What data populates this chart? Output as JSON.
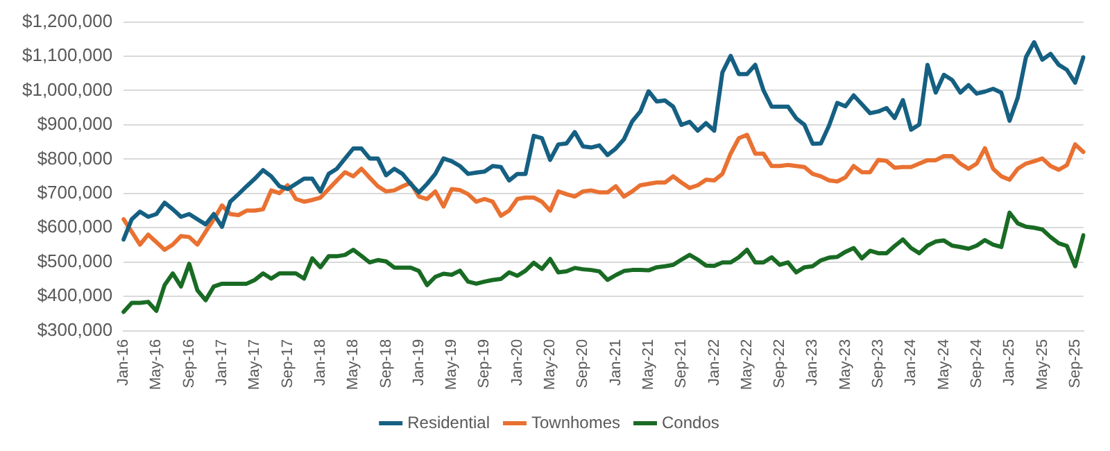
{
  "chart_data": {
    "type": "line",
    "categories": [
      "Jan-16",
      null,
      null,
      null,
      "May-16",
      null,
      null,
      null,
      "Sep-16",
      null,
      null,
      null,
      "Jan-17",
      null,
      null,
      null,
      "May-17",
      null,
      null,
      null,
      "Sep-17",
      null,
      null,
      null,
      "Jan-18",
      null,
      null,
      null,
      "May-18",
      null,
      null,
      null,
      "Sep-18",
      null,
      null,
      null,
      "Jan-19",
      null,
      null,
      null,
      "May-19",
      null,
      null,
      null,
      "Sep-19",
      null,
      null,
      null,
      "Jan-20",
      null,
      null,
      null,
      "May-20",
      null,
      null,
      null,
      "Sep-20",
      null,
      null,
      null,
      "Jan-21",
      null,
      null,
      null,
      "May-21",
      null,
      null,
      null,
      "Sep-21",
      null,
      null,
      null,
      "Jan-22",
      null,
      null,
      null,
      "May-22",
      null,
      null,
      null,
      "Sep-22",
      null,
      null,
      null,
      "Jan-23",
      null,
      null,
      null,
      "May-23",
      null,
      null,
      null,
      "Sep-23",
      null,
      null,
      null,
      "Jan-24",
      null,
      null,
      null,
      "May-24",
      null,
      null,
      null,
      "Sep-24",
      null,
      null,
      null,
      "Jan-25",
      null,
      null,
      null,
      "May-25",
      null,
      null,
      null,
      "Sep-25",
      null
    ],
    "series": [
      {
        "name": "Residential",
        "color": "#156082",
        "values": [
          566000,
          625000,
          647000,
          632000,
          640000,
          673000,
          654000,
          632000,
          640000,
          625000,
          610000,
          640000,
          603000,
          676000,
          698000,
          721000,
          743000,
          768000,
          750000,
          721000,
          713000,
          728000,
          743000,
          743000,
          706000,
          757000,
          772000,
          802000,
          831000,
          831000,
          802000,
          802000,
          753000,
          772000,
          757000,
          728000,
          703000,
          728000,
          757000,
          802000,
          794000,
          780000,
          757000,
          761000,
          764000,
          780000,
          777000,
          738000,
          757000,
          757000,
          868000,
          861000,
          798000,
          843000,
          846000,
          879000,
          837000,
          834000,
          840000,
          812000,
          831000,
          858000,
          910000,
          939000,
          998000,
          968000,
          971000,
          953000,
          900000,
          909000,
          883000,
          905000,
          883000,
          1053000,
          1101000,
          1048000,
          1048000,
          1075000,
          1001000,
          953000,
          953000,
          953000,
          919000,
          900000,
          845000,
          846000,
          898000,
          964000,
          954000,
          986000,
          960000,
          934000,
          939000,
          949000,
          920000,
          972000,
          886000,
          901000,
          1075000,
          994000,
          1046000,
          1031000,
          994000,
          1016000,
          991000,
          997000,
          1005000,
          994000,
          912000,
          979000,
          1097000,
          1141000,
          1090000,
          1107000,
          1075000,
          1060000,
          1023000,
          1097000
        ]
      },
      {
        "name": "Townhomes",
        "color": "#e97132",
        "values": [
          625000,
          588000,
          551000,
          580000,
          558000,
          536000,
          551000,
          576000,
          573000,
          551000,
          588000,
          625000,
          665000,
          640000,
          637000,
          650000,
          650000,
          654000,
          709000,
          701000,
          724000,
          684000,
          676000,
          681000,
          688000,
          713000,
          738000,
          762000,
          750000,
          772000,
          746000,
          721000,
          706000,
          709000,
          721000,
          731000,
          691000,
          684000,
          706000,
          662000,
          713000,
          710000,
          698000,
          676000,
          684000,
          676000,
          635000,
          650000,
          684000,
          688000,
          688000,
          676000,
          650000,
          706000,
          698000,
          691000,
          706000,
          709000,
          703000,
          703000,
          721000,
          691000,
          706000,
          724000,
          728000,
          732000,
          732000,
          750000,
          732000,
          716000,
          724000,
          740000,
          738000,
          757000,
          816000,
          861000,
          871000,
          816000,
          816000,
          780000,
          780000,
          783000,
          780000,
          777000,
          757000,
          750000,
          738000,
          735000,
          747000,
          780000,
          762000,
          762000,
          798000,
          795000,
          775000,
          777000,
          777000,
          787000,
          797000,
          797000,
          809000,
          809000,
          787000,
          772000,
          787000,
          832000,
          772000,
          750000,
          740000,
          772000,
          787000,
          794000,
          802000,
          780000,
          769000,
          783000,
          843000,
          821000
        ]
      },
      {
        "name": "Condos",
        "color": "#196b24",
        "values": [
          355000,
          381000,
          381000,
          384000,
          358000,
          433000,
          467000,
          429000,
          495000,
          418000,
          389000,
          429000,
          437000,
          437000,
          437000,
          437000,
          448000,
          467000,
          452000,
          467000,
          467000,
          467000,
          452000,
          511000,
          485000,
          517000,
          517000,
          521000,
          536000,
          518000,
          499000,
          506000,
          502000,
          484000,
          484000,
          484000,
          474000,
          433000,
          457000,
          466000,
          463000,
          475000,
          443000,
          437000,
          443000,
          448000,
          451000,
          470000,
          460000,
          475000,
          498000,
          480000,
          509000,
          470000,
          473000,
          483000,
          479000,
          477000,
          473000,
          448000,
          462000,
          474000,
          477000,
          477000,
          476000,
          485000,
          488000,
          492000,
          507000,
          521000,
          507000,
          490000,
          489000,
          499000,
          499000,
          514000,
          536000,
          499000,
          499000,
          514000,
          492000,
          499000,
          470000,
          485000,
          488000,
          505000,
          513000,
          515000,
          530000,
          541000,
          511000,
          533000,
          526000,
          526000,
          547000,
          566000,
          541000,
          526000,
          548000,
          560000,
          563000,
          548000,
          544000,
          539000,
          548000,
          564000,
          551000,
          544000,
          644000,
          613000,
          603000,
          600000,
          595000,
          573000,
          555000,
          547000,
          488000,
          578000
        ]
      }
    ],
    "ylim": [
      300000,
      1200000
    ],
    "yticks": [
      {
        "value": 300000,
        "label": "$300,000"
      },
      {
        "value": 400000,
        "label": "$400,000"
      },
      {
        "value": 500000,
        "label": "$500,000"
      },
      {
        "value": 600000,
        "label": "$600,000"
      },
      {
        "value": 700000,
        "label": "$700,000"
      },
      {
        "value": 800000,
        "label": "$800,000"
      },
      {
        "value": 900000,
        "label": "$900,000"
      },
      {
        "value": 1000000,
        "label": "$1,000,000"
      },
      {
        "value": 1100000,
        "label": "$1,100,000"
      },
      {
        "value": 1200000,
        "label": "$1,200,000"
      }
    ],
    "grid": "y",
    "legend": "bottom",
    "marker": "none",
    "line_style": "solid"
  }
}
